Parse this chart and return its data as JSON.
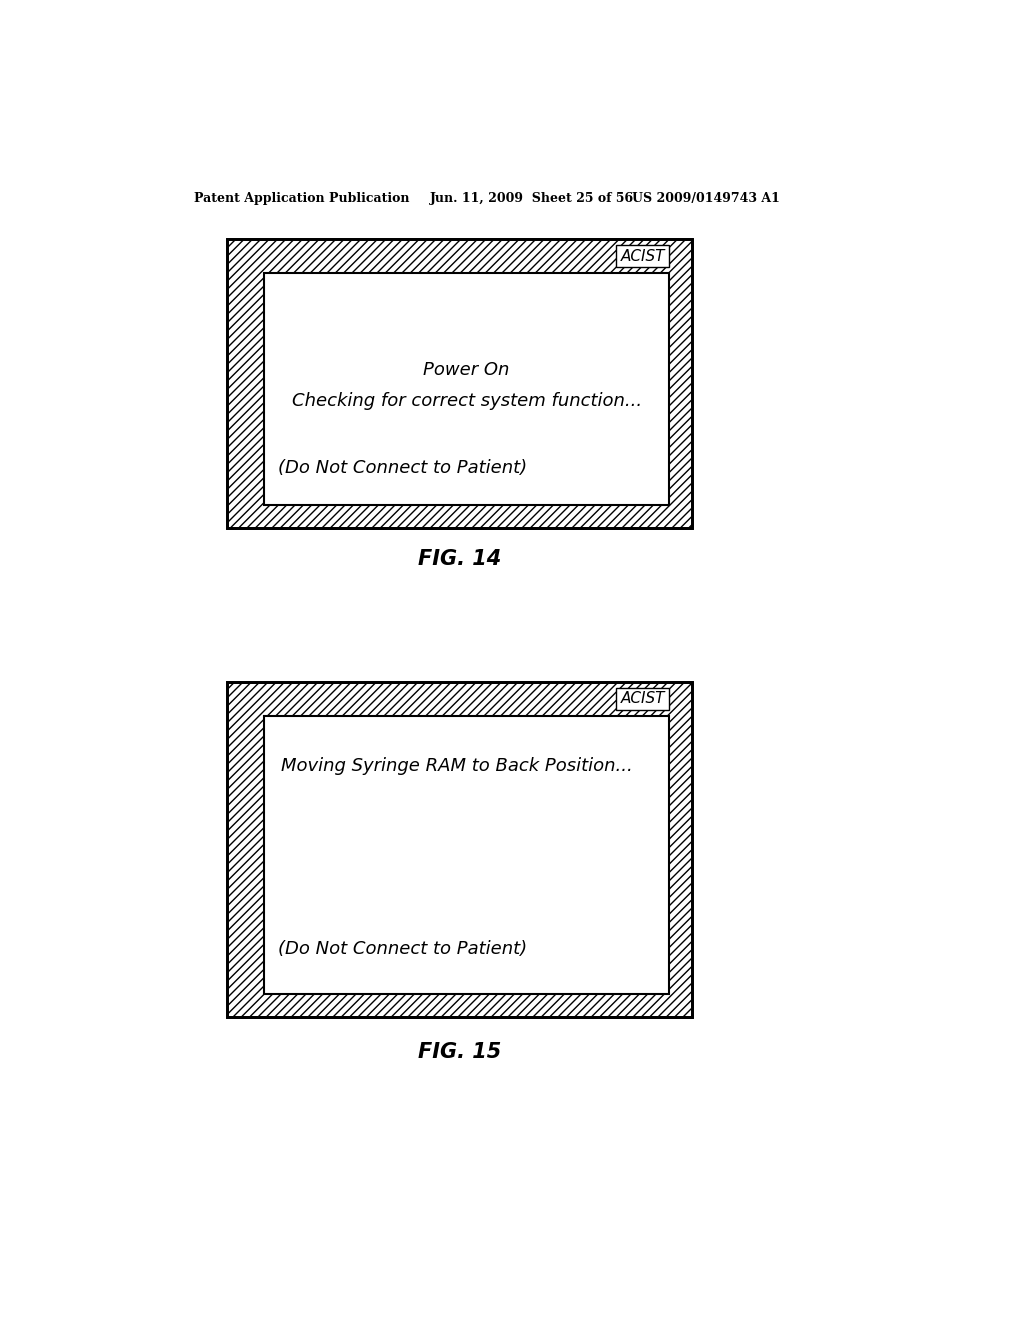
{
  "bg_color": "#ffffff",
  "header_left": "Patent Application Publication",
  "header_mid": "Jun. 11, 2009  Sheet 25 of 56",
  "header_right": "US 2009/0149743 A1",
  "fig1": {
    "label": "ACIST",
    "text1": "Power On",
    "text2": "Checking for correct system function...",
    "text3": "(Do Not Connect to Patient)",
    "caption": "FIG. 14"
  },
  "fig2": {
    "label": "ACIST",
    "text1": "Moving Syringe RAM to Back Position...",
    "text2": "(Do Not Connect to Patient)",
    "caption": "FIG. 15"
  },
  "text_color": "#000000"
}
